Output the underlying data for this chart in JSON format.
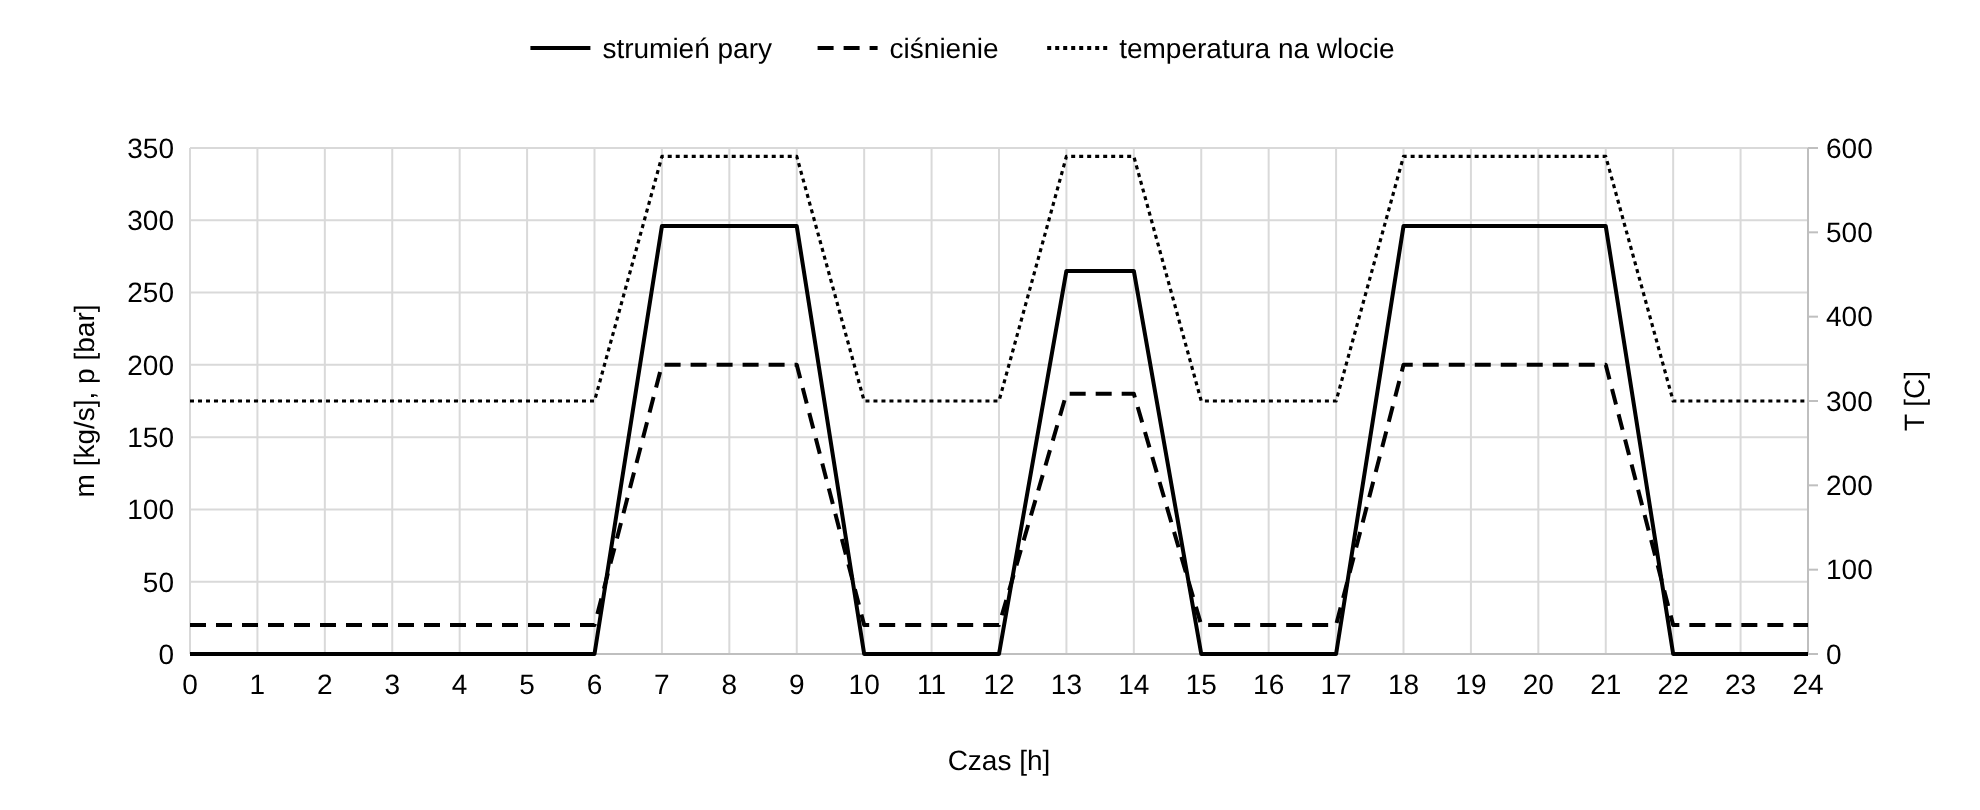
{
  "chart_data": {
    "type": "line",
    "xlabel": "Czas [h]",
    "ylabel": "m [kg/s], p [bar]",
    "y2label": "T [C]",
    "x": [
      0,
      6,
      7,
      9,
      10,
      12,
      13,
      14,
      15,
      17,
      18,
      21,
      22,
      24
    ],
    "series": [
      {
        "name": "strumień pary",
        "color": "#000000",
        "line_style": "solid",
        "values": [
          0,
          0,
          296,
          296,
          0,
          0,
          265,
          265,
          0,
          0,
          296,
          296,
          0,
          0
        ]
      },
      {
        "name": "ciśnienie",
        "color": "#000000",
        "line_style": "dashed",
        "values": [
          20,
          20,
          200,
          200,
          20,
          20,
          180,
          180,
          20,
          20,
          200,
          200,
          20,
          20
        ]
      },
      {
        "name": "temperatura na wlocie",
        "color": "#000000",
        "line_style": "dotted",
        "axis": "y2",
        "values": [
          300,
          300,
          590,
          590,
          300,
          300,
          590,
          590,
          300,
          300,
          590,
          590,
          300,
          300
        ]
      }
    ],
    "xlim": [
      0,
      24
    ],
    "xticks": [
      0,
      1,
      2,
      3,
      4,
      5,
      6,
      7,
      8,
      9,
      10,
      11,
      12,
      13,
      14,
      15,
      16,
      17,
      18,
      19,
      20,
      21,
      22,
      23,
      24
    ],
    "ylim": [
      0,
      350
    ],
    "yticks": [
      0,
      50,
      100,
      150,
      200,
      250,
      300,
      350
    ],
    "y2lim": [
      0,
      600
    ],
    "y2ticks": [
      0,
      100,
      200,
      300,
      400,
      500,
      600
    ],
    "grid": true,
    "legend": "top",
    "marker": "none"
  }
}
